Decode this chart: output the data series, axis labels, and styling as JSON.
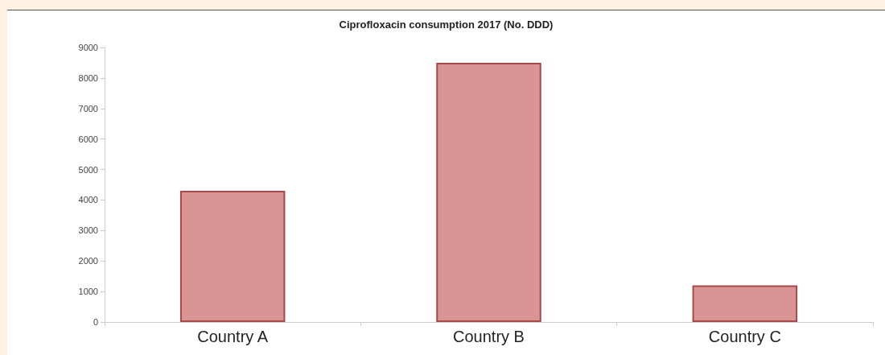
{
  "chart_data": {
    "type": "bar",
    "title": "Ciprofloxacin consumption 2017 (No. DDD)",
    "categories": [
      "Country A",
      "Country B",
      "Country C"
    ],
    "values": [
      4300,
      8500,
      1200
    ],
    "color": "#d99594",
    "ylim": [
      0,
      9000
    ],
    "yticks": [
      0,
      1000,
      2000,
      3000,
      4000,
      5000,
      6000,
      7000,
      8000,
      9000
    ],
    "grid": false
  }
}
